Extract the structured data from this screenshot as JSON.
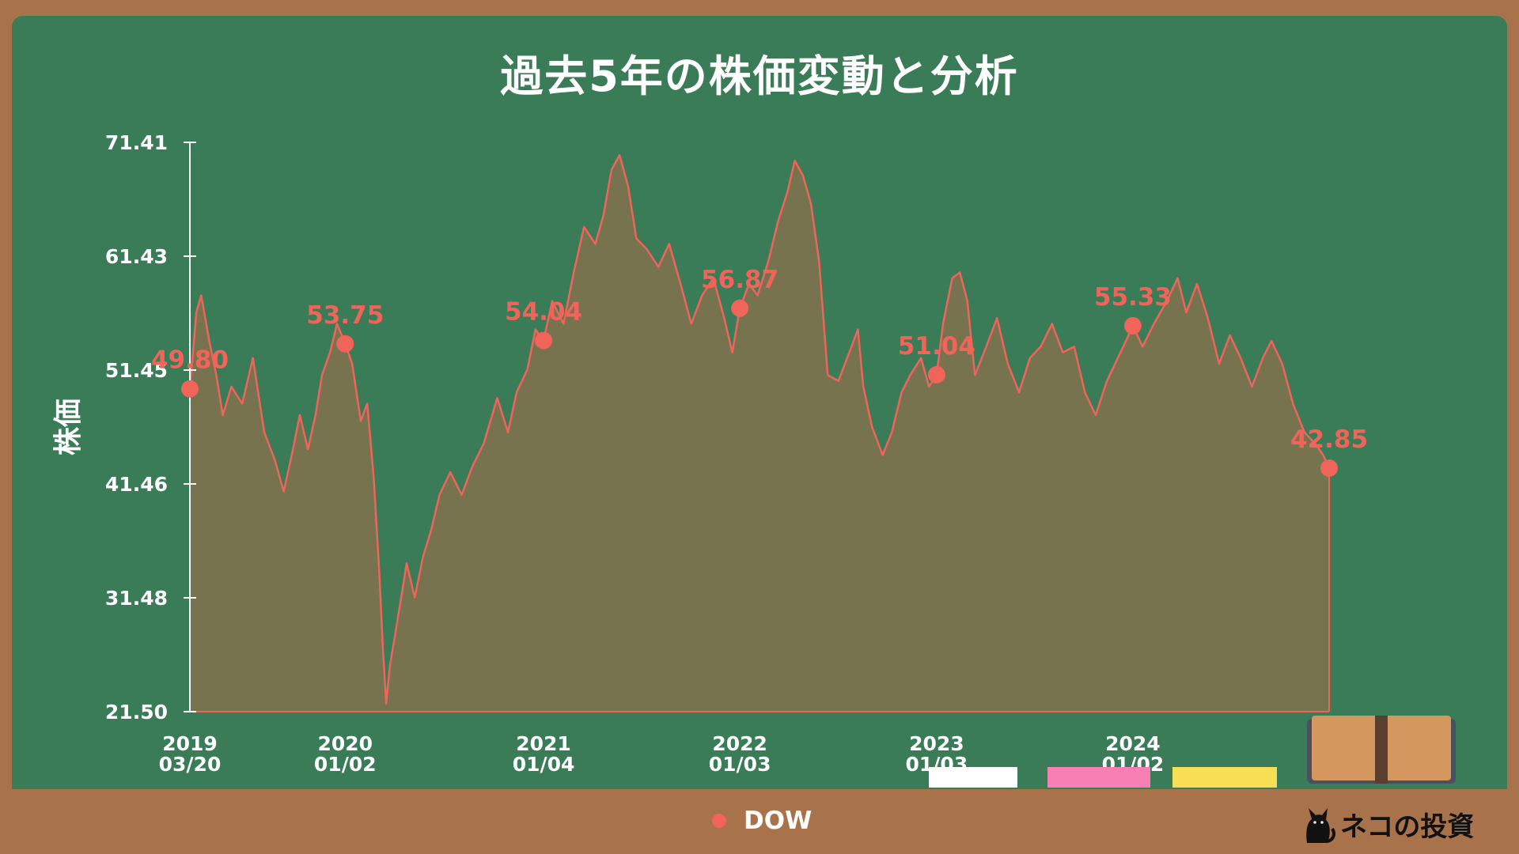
{
  "title": "過去5年の株価変動と分析",
  "ylabel": "株価",
  "legend": {
    "label": "DOW",
    "color": "#f0645a"
  },
  "logo": {
    "text": "ネコの投資",
    "icon": "black-cat-icon"
  },
  "decorations": {
    "chalk_colors": [
      "#ffffff",
      "#f77fb4",
      "#f7de52"
    ],
    "book_icon": "book-icon",
    "board_color": "#3a7b58",
    "frame_color": "#a8724a"
  },
  "chart_data": {
    "type": "area",
    "series_color": "#f0645a",
    "fill_color": "#77734f",
    "ylim": [
      21.5,
      71.41
    ],
    "yticks": [
      "71.41",
      "61.43",
      "51.45",
      "41.46",
      "31.48",
      "21.50"
    ],
    "xlim": [
      "2019-03-20",
      "2024-12-31"
    ],
    "xticks": [
      {
        "date": "2019-03-20",
        "line1": "2019",
        "line2": "03/20"
      },
      {
        "date": "2020-01-02",
        "line1": "2020",
        "line2": "01/02"
      },
      {
        "date": "2021-01-04",
        "line1": "2021",
        "line2": "01/04"
      },
      {
        "date": "2022-01-03",
        "line1": "2022",
        "line2": "01/03"
      },
      {
        "date": "2023-01-03",
        "line1": "2023",
        "line2": "01/03"
      },
      {
        "date": "2024-01-02",
        "line1": "2024",
        "line2": "01/02"
      }
    ],
    "highlighted_points": [
      {
        "date": "2019-03-20",
        "value": 49.8,
        "label": "49.80"
      },
      {
        "date": "2020-01-02",
        "value": 53.75,
        "label": "53.75"
      },
      {
        "date": "2021-01-04",
        "value": 54.04,
        "label": "54.04"
      },
      {
        "date": "2022-01-03",
        "value": 56.87,
        "label": "56.87"
      },
      {
        "date": "2023-01-03",
        "value": 51.04,
        "label": "51.04"
      },
      {
        "date": "2024-01-02",
        "value": 55.33,
        "label": "55.33"
      },
      {
        "date": "2024-12-31",
        "value": 42.85,
        "label": "42.85"
      }
    ],
    "series": [
      {
        "name": "DOW",
        "points": [
          [
            "2019-03-20",
            49.8
          ],
          [
            "2019-04-01",
            56.5
          ],
          [
            "2019-04-10",
            58.0
          ],
          [
            "2019-04-25",
            54.0
          ],
          [
            "2019-05-08",
            51.0
          ],
          [
            "2019-05-20",
            47.5
          ],
          [
            "2019-06-05",
            50.0
          ],
          [
            "2019-06-25",
            48.5
          ],
          [
            "2019-07-15",
            52.5
          ],
          [
            "2019-08-05",
            46.0
          ],
          [
            "2019-08-25",
            43.5
          ],
          [
            "2019-09-10",
            40.8
          ],
          [
            "2019-09-25",
            44.0
          ],
          [
            "2019-10-10",
            47.5
          ],
          [
            "2019-10-25",
            44.5
          ],
          [
            "2019-11-08",
            47.5
          ],
          [
            "2019-11-20",
            51.0
          ],
          [
            "2019-12-05",
            53.0
          ],
          [
            "2019-12-18",
            55.5
          ],
          [
            "2020-01-02",
            53.75
          ],
          [
            "2020-01-15",
            52.0
          ],
          [
            "2020-01-31",
            47.0
          ],
          [
            "2020-02-12",
            48.5
          ],
          [
            "2020-02-24",
            42.0
          ],
          [
            "2020-03-05",
            34.0
          ],
          [
            "2020-03-12",
            27.0
          ],
          [
            "2020-03-18",
            22.2
          ],
          [
            "2020-03-25",
            25.5
          ],
          [
            "2020-04-08",
            29.5
          ],
          [
            "2020-04-25",
            34.5
          ],
          [
            "2020-05-10",
            31.5
          ],
          [
            "2020-05-25",
            35.0
          ],
          [
            "2020-06-10",
            37.5
          ],
          [
            "2020-06-25",
            40.5
          ],
          [
            "2020-07-15",
            42.5
          ],
          [
            "2020-08-05",
            40.5
          ],
          [
            "2020-08-25",
            43.0
          ],
          [
            "2020-09-15",
            45.0
          ],
          [
            "2020-10-10",
            49.0
          ],
          [
            "2020-10-30",
            46.0
          ],
          [
            "2020-11-15",
            49.5
          ],
          [
            "2020-12-05",
            51.5
          ],
          [
            "2020-12-20",
            55.0
          ],
          [
            "2021-01-04",
            54.04
          ],
          [
            "2021-01-20",
            57.5
          ],
          [
            "2021-02-10",
            55.5
          ],
          [
            "2021-03-01",
            60.0
          ],
          [
            "2021-03-20",
            64.0
          ],
          [
            "2021-04-10",
            62.5
          ],
          [
            "2021-04-25",
            65.0
          ],
          [
            "2021-05-10",
            69.0
          ],
          [
            "2021-05-25",
            70.3
          ],
          [
            "2021-06-10",
            67.5
          ],
          [
            "2021-06-25",
            63.0
          ],
          [
            "2021-07-15",
            62.0
          ],
          [
            "2021-08-05",
            60.5
          ],
          [
            "2021-08-25",
            62.5
          ],
          [
            "2021-09-15",
            59.0
          ],
          [
            "2021-10-05",
            55.5
          ],
          [
            "2021-10-25",
            58.0
          ],
          [
            "2021-11-15",
            59.5
          ],
          [
            "2021-12-05",
            56.0
          ],
          [
            "2021-12-20",
            53.0
          ],
          [
            "2022-01-03",
            56.87
          ],
          [
            "2022-01-20",
            59.0
          ],
          [
            "2022-02-05",
            58.0
          ],
          [
            "2022-02-25",
            61.0
          ],
          [
            "2022-03-15",
            64.5
          ],
          [
            "2022-04-01",
            67.0
          ],
          [
            "2022-04-15",
            69.8
          ],
          [
            "2022-04-30",
            68.5
          ],
          [
            "2022-05-15",
            66.0
          ],
          [
            "2022-05-30",
            61.0
          ],
          [
            "2022-06-15",
            51.0
          ],
          [
            "2022-07-05",
            50.5
          ],
          [
            "2022-07-25",
            53.0
          ],
          [
            "2022-08-10",
            55.0
          ],
          [
            "2022-08-20",
            50.0
          ],
          [
            "2022-09-05",
            46.5
          ],
          [
            "2022-09-25",
            44.0
          ],
          [
            "2022-10-12",
            46.0
          ],
          [
            "2022-10-30",
            49.5
          ],
          [
            "2022-11-15",
            51.0
          ],
          [
            "2022-12-05",
            52.5
          ],
          [
            "2022-12-20",
            50.0
          ],
          [
            "2023-01-03",
            51.04
          ],
          [
            "2023-01-15",
            55.5
          ],
          [
            "2023-02-01",
            59.5
          ],
          [
            "2023-02-15",
            60.0
          ],
          [
            "2023-03-01",
            57.5
          ],
          [
            "2023-03-15",
            51.0
          ],
          [
            "2023-04-05",
            53.5
          ],
          [
            "2023-04-25",
            56.0
          ],
          [
            "2023-05-15",
            52.0
          ],
          [
            "2023-06-05",
            49.5
          ],
          [
            "2023-06-25",
            52.5
          ],
          [
            "2023-07-15",
            53.5
          ],
          [
            "2023-08-05",
            55.5
          ],
          [
            "2023-08-25",
            53.0
          ],
          [
            "2023-09-15",
            53.5
          ],
          [
            "2023-10-05",
            49.5
          ],
          [
            "2023-10-25",
            47.5
          ],
          [
            "2023-11-15",
            50.5
          ],
          [
            "2023-12-05",
            52.5
          ],
          [
            "2023-12-20",
            54.0
          ],
          [
            "2024-01-02",
            55.33
          ],
          [
            "2024-01-20",
            53.5
          ],
          [
            "2024-02-10",
            55.5
          ],
          [
            "2024-03-05",
            57.5
          ],
          [
            "2024-03-25",
            59.5
          ],
          [
            "2024-04-10",
            56.5
          ],
          [
            "2024-04-30",
            59.0
          ],
          [
            "2024-05-20",
            56.0
          ],
          [
            "2024-06-10",
            52.0
          ],
          [
            "2024-06-30",
            54.5
          ],
          [
            "2024-07-20",
            52.5
          ],
          [
            "2024-08-10",
            50.0
          ],
          [
            "2024-08-30",
            52.5
          ],
          [
            "2024-09-15",
            54.0
          ],
          [
            "2024-10-05",
            52.0
          ],
          [
            "2024-10-25",
            48.5
          ],
          [
            "2024-11-15",
            46.0
          ],
          [
            "2024-12-05",
            45.0
          ],
          [
            "2024-12-20",
            44.0
          ],
          [
            "2024-12-31",
            42.85
          ]
        ]
      }
    ]
  }
}
